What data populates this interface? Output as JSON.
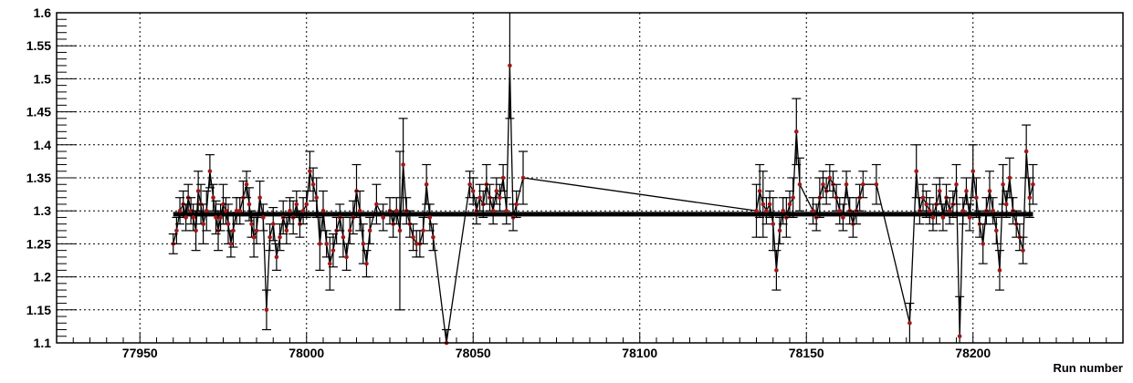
{
  "chart_data": {
    "type": "scatter",
    "title": "",
    "xlabel": "Run number",
    "ylabel": "",
    "xlim": [
      77925,
      78245
    ],
    "ylim": [
      1.1,
      1.6
    ],
    "xticks": [
      77950,
      78000,
      78050,
      78100,
      78150,
      78200
    ],
    "xtick_labels": [
      "77950",
      "78000",
      "78050",
      "78100",
      "78150",
      "78200"
    ],
    "yticks": [
      1.1,
      1.15,
      1.2,
      1.25,
      1.3,
      1.35,
      1.4,
      1.45,
      1.5,
      1.55,
      1.6
    ],
    "ytick_labels": [
      "1.1",
      "1.15",
      "1.2",
      "1.25",
      "1.3",
      "1.35",
      "1.4",
      "1.45",
      "1.5",
      "1.55",
      "1.6"
    ],
    "grid": true,
    "reference_line": {
      "y": 1.295,
      "x_from": 77960,
      "x_to": 78218
    },
    "colors": {
      "marker": "#a01818",
      "line": "#000000",
      "grid": "#000000"
    },
    "series": [
      {
        "points": [
          [
            77960,
            1.25,
            0.015
          ],
          [
            77961,
            1.27,
            0.02
          ],
          [
            77962,
            1.3,
            0.02
          ],
          [
            77963,
            1.31,
            0.02
          ],
          [
            77963.8,
            1.29,
            0.02
          ],
          [
            77964.5,
            1.32,
            0.02
          ],
          [
            77965.3,
            1.3,
            0.02
          ],
          [
            77966,
            1.29,
            0.02
          ],
          [
            77966.8,
            1.27,
            0.03
          ],
          [
            77967.5,
            1.33,
            0.03
          ],
          [
            77968.3,
            1.31,
            0.03
          ],
          [
            77969,
            1.28,
            0.03
          ],
          [
            77970,
            1.3,
            0.03
          ],
          [
            77971,
            1.36,
            0.025
          ],
          [
            77972,
            1.32,
            0.02
          ],
          [
            77972.8,
            1.29,
            0.025
          ],
          [
            77973.5,
            1.27,
            0.03
          ],
          [
            77974.2,
            1.29,
            0.02
          ],
          [
            77975,
            1.31,
            0.03
          ],
          [
            77975.8,
            1.3,
            0.02
          ],
          [
            77976.5,
            1.28,
            0.03
          ],
          [
            77977.3,
            1.25,
            0.02
          ],
          [
            77978,
            1.27,
            0.025
          ],
          [
            77979,
            1.3,
            0.02
          ],
          [
            77980,
            1.3,
            0.02
          ],
          [
            77981,
            1.32,
            0.025
          ],
          [
            77982,
            1.34,
            0.02
          ],
          [
            77982.8,
            1.31,
            0.025
          ],
          [
            77983.5,
            1.28,
            0.02
          ],
          [
            77984.2,
            1.26,
            0.03
          ],
          [
            77985,
            1.27,
            0.02
          ],
          [
            77986,
            1.32,
            0.025
          ],
          [
            77987,
            1.29,
            0.02
          ],
          [
            77988,
            1.15,
            0.03
          ],
          [
            77989,
            1.26,
            0.02
          ],
          [
            77990,
            1.28,
            0.025
          ],
          [
            77991,
            1.23,
            0.02
          ],
          [
            77992,
            1.26,
            0.02
          ],
          [
            77993,
            1.29,
            0.025
          ],
          [
            77994,
            1.27,
            0.02
          ],
          [
            77995,
            1.3,
            0.02
          ],
          [
            77996,
            1.29,
            0.025
          ],
          [
            77997,
            1.31,
            0.02
          ],
          [
            77998,
            1.28,
            0.02
          ],
          [
            77999,
            1.3,
            0.02
          ],
          [
            78000,
            1.31,
            0.02
          ],
          [
            78001,
            1.36,
            0.03
          ],
          [
            78002,
            1.34,
            0.025
          ],
          [
            78003,
            1.32,
            0.03
          ],
          [
            78004,
            1.25,
            0.04
          ],
          [
            78005,
            1.3,
            0.03
          ],
          [
            78006,
            1.25,
            0.02
          ],
          [
            78007,
            1.22,
            0.04
          ],
          [
            78008,
            1.24,
            0.025
          ],
          [
            78009,
            1.27,
            0.02
          ],
          [
            78010,
            1.29,
            0.02
          ],
          [
            78011,
            1.26,
            0.03
          ],
          [
            78012,
            1.23,
            0.02
          ],
          [
            78013,
            1.27,
            0.02
          ],
          [
            78014,
            1.29,
            0.025
          ],
          [
            78015,
            1.33,
            0.04
          ],
          [
            78016,
            1.3,
            0.03
          ],
          [
            78017,
            1.25,
            0.03
          ],
          [
            78018,
            1.22,
            0.02
          ],
          [
            78019,
            1.27,
            0.02
          ],
          [
            78021,
            1.31,
            0.03
          ],
          [
            78023,
            1.29,
            0.02
          ],
          [
            78025,
            1.3,
            0.02
          ],
          [
            78026,
            1.28,
            0.02
          ],
          [
            78027,
            1.3,
            0.02
          ],
          [
            78028,
            1.27,
            0.12
          ],
          [
            78029,
            1.37,
            0.07
          ],
          [
            78030,
            1.3,
            0.02
          ],
          [
            78031,
            1.28,
            0.02
          ],
          [
            78032,
            1.26,
            0.02
          ],
          [
            78033,
            1.25,
            0.02
          ],
          [
            78034,
            1.25,
            0.02
          ],
          [
            78035,
            1.27,
            0.02
          ],
          [
            78036,
            1.34,
            0.03
          ],
          [
            78037,
            1.29,
            0.02
          ],
          [
            78038,
            1.26,
            0.02
          ],
          [
            78042,
            1.1,
            0.02
          ],
          [
            78049,
            1.34,
            0.02
          ],
          [
            78050,
            1.33,
            0.02
          ],
          [
            78051,
            1.3,
            0.02
          ],
          [
            78052,
            1.32,
            0.02
          ],
          [
            78053,
            1.31,
            0.02
          ],
          [
            78054,
            1.34,
            0.03
          ],
          [
            78055,
            1.32,
            0.02
          ],
          [
            78056,
            1.3,
            0.02
          ],
          [
            78057,
            1.33,
            0.02
          ],
          [
            78058,
            1.32,
            0.02
          ],
          [
            78059,
            1.35,
            0.02
          ],
          [
            78060,
            1.3,
            0.02
          ],
          [
            78061,
            1.52,
            0.08
          ],
          [
            78062,
            1.29,
            0.02
          ],
          [
            78063,
            1.31,
            0.02
          ],
          [
            78065,
            1.35,
            0.04
          ],
          [
            78135,
            1.3,
            0.04
          ],
          [
            78136,
            1.33,
            0.04
          ],
          [
            78137,
            1.31,
            0.05
          ],
          [
            78138,
            1.3,
            0.02
          ],
          [
            78139,
            1.31,
            0.02
          ],
          [
            78140,
            1.28,
            0.04
          ],
          [
            78141,
            1.21,
            0.03
          ],
          [
            78142,
            1.27,
            0.02
          ],
          [
            78143,
            1.3,
            0.02
          ],
          [
            78144,
            1.29,
            0.03
          ],
          [
            78145,
            1.31,
            0.02
          ],
          [
            78146,
            1.32,
            0.03
          ],
          [
            78147,
            1.42,
            0.05
          ],
          [
            78148,
            1.34,
            0.04
          ],
          [
            78152,
            1.3,
            0.02
          ],
          [
            78153,
            1.29,
            0.02
          ],
          [
            78154,
            1.32,
            0.03
          ],
          [
            78155,
            1.34,
            0.02
          ],
          [
            78156,
            1.33,
            0.02
          ],
          [
            78157,
            1.35,
            0.02
          ],
          [
            78158,
            1.34,
            0.02
          ],
          [
            78159,
            1.32,
            0.02
          ],
          [
            78160,
            1.3,
            0.02
          ],
          [
            78161,
            1.29,
            0.02
          ],
          [
            78162,
            1.34,
            0.02
          ],
          [
            78163,
            1.3,
            0.02
          ],
          [
            78164,
            1.28,
            0.02
          ],
          [
            78165,
            1.3,
            0.02
          ],
          [
            78166,
            1.32,
            0.02
          ],
          [
            78167,
            1.34,
            0.02
          ],
          [
            78171,
            1.34,
            0.03
          ],
          [
            78181,
            1.13,
            0.03
          ],
          [
            78183,
            1.36,
            0.04
          ],
          [
            78184,
            1.3,
            0.02
          ],
          [
            78185,
            1.32,
            0.02
          ],
          [
            78186,
            1.31,
            0.02
          ],
          [
            78187,
            1.3,
            0.02
          ],
          [
            78188,
            1.29,
            0.02
          ],
          [
            78189,
            1.31,
            0.03
          ],
          [
            78190,
            1.33,
            0.02
          ],
          [
            78191,
            1.29,
            0.02
          ],
          [
            78192,
            1.32,
            0.02
          ],
          [
            78193,
            1.3,
            0.02
          ],
          [
            78194,
            1.31,
            0.02
          ],
          [
            78195,
            1.34,
            0.03
          ],
          [
            78196,
            1.11,
            0.06
          ],
          [
            78197,
            1.3,
            0.02
          ],
          [
            78198,
            1.33,
            0.02
          ],
          [
            78199,
            1.29,
            0.02
          ],
          [
            78200,
            1.36,
            0.04
          ],
          [
            78201,
            1.32,
            0.03
          ],
          [
            78202,
            1.28,
            0.02
          ],
          [
            78203,
            1.25,
            0.03
          ],
          [
            78204,
            1.3,
            0.02
          ],
          [
            78205,
            1.33,
            0.03
          ],
          [
            78206,
            1.3,
            0.02
          ],
          [
            78207,
            1.27,
            0.02
          ],
          [
            78208,
            1.21,
            0.03
          ],
          [
            78209,
            1.34,
            0.03
          ],
          [
            78210,
            1.31,
            0.02
          ],
          [
            78211,
            1.35,
            0.03
          ],
          [
            78212,
            1.3,
            0.02
          ],
          [
            78213,
            1.28,
            0.02
          ],
          [
            78214,
            1.26,
            0.02
          ],
          [
            78215,
            1.24,
            0.02
          ],
          [
            78216,
            1.39,
            0.04
          ],
          [
            78217,
            1.32,
            0.03
          ],
          [
            78218,
            1.34,
            0.03
          ]
        ]
      }
    ]
  }
}
